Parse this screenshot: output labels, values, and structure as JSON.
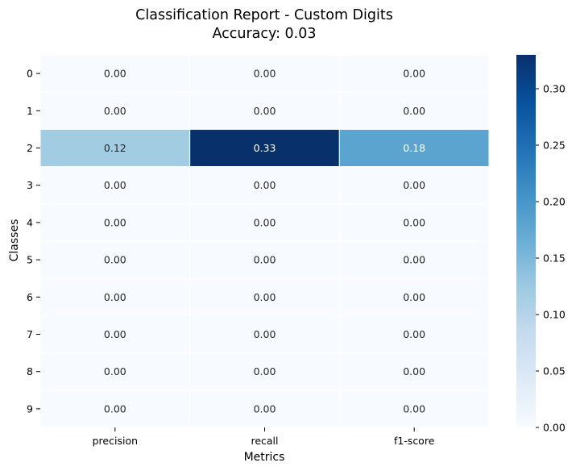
{
  "chart_data": {
    "type": "heatmap",
    "title": "Classification Report - Custom Digits",
    "subtitle": "Accuracy: 0.03",
    "xlabel": "Metrics",
    "ylabel": "Classes",
    "columns": [
      "precision",
      "recall",
      "f1-score"
    ],
    "rows": [
      "0",
      "1",
      "2",
      "3",
      "4",
      "5",
      "6",
      "7",
      "8",
      "9"
    ],
    "values": [
      [
        0.0,
        0.0,
        0.0
      ],
      [
        0.0,
        0.0,
        0.0
      ],
      [
        0.12,
        0.33,
        0.18
      ],
      [
        0.0,
        0.0,
        0.0
      ],
      [
        0.0,
        0.0,
        0.0
      ],
      [
        0.0,
        0.0,
        0.0
      ],
      [
        0.0,
        0.0,
        0.0
      ],
      [
        0.0,
        0.0,
        0.0
      ],
      [
        0.0,
        0.0,
        0.0
      ],
      [
        0.0,
        0.0,
        0.0
      ]
    ],
    "colormap": "Blues",
    "colorbar": {
      "range": [
        0.0,
        0.33
      ],
      "ticks": [
        0.0,
        0.05,
        0.1,
        0.15,
        0.2,
        0.25,
        0.3
      ]
    },
    "annotate_format": "0.00"
  }
}
